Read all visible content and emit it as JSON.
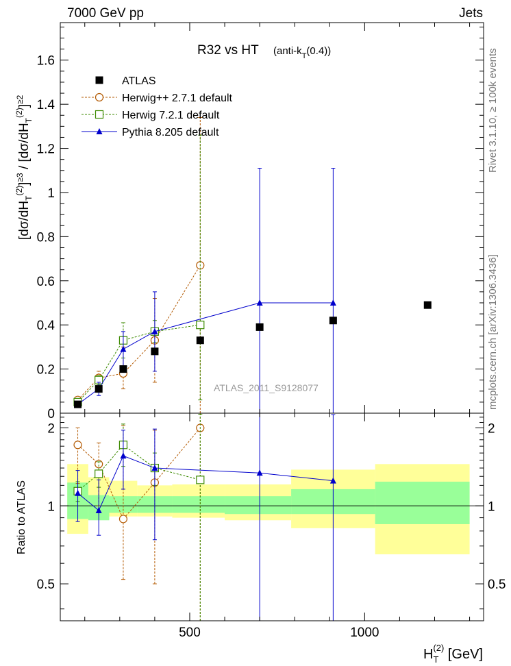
{
  "header": {
    "left": "7000 GeV pp",
    "right": "Jets"
  },
  "side_texts": {
    "rivet": "Rivet 3.1.10, ≥ 100k events",
    "mcplots": "mcplots.cern.ch [arXiv:1306.3436]"
  },
  "chart_data": [
    {
      "type": "scatter",
      "panel": "main",
      "title": "R32 vs HT",
      "title_suffix": "(anti-k",
      "title_sub": "T",
      "title_end": "(0.4))",
      "watermark": "ATLAS_2011_S9128077",
      "ylabel": "[dσ/dH_T^(2)]^≥3 / [dσ/dH_T^(2)]^≥2",
      "xlim": [
        130,
        1340
      ],
      "ylim": [
        0,
        1.77
      ],
      "yticks": [
        0,
        0.2,
        0.4,
        0.6,
        0.8,
        1,
        1.2,
        1.4,
        1.6
      ],
      "ytick_labels": [
        "0",
        "0.2",
        "0.4",
        "0.6",
        "0.8",
        "1",
        "1.2",
        "1.4",
        "1.6"
      ],
      "legend_position": "top-left",
      "series": [
        {
          "name": "ATLAS",
          "color": "#000000",
          "marker": "square-filled",
          "x": [
            180,
            240,
            310,
            400,
            530,
            700,
            910,
            1180
          ],
          "y": [
            0.04,
            0.11,
            0.2,
            0.28,
            0.33,
            0.39,
            0.42,
            0.49
          ]
        },
        {
          "name": "Herwig++ 2.7.1 default",
          "color": "#b35900",
          "marker": "circle-open",
          "line": "dashed",
          "x": [
            180,
            240,
            310,
            400,
            530
          ],
          "y": [
            0.06,
            0.16,
            0.18,
            0.33,
            0.67
          ],
          "err_low": [
            0.01,
            0.02,
            0.07,
            0.19,
            0.67
          ],
          "err_high": [
            0.01,
            0.03,
            0.12,
            0.19,
            0.67
          ]
        },
        {
          "name": "Herwig 7.2.1 default",
          "color": "#3c8a00",
          "marker": "square-open",
          "line": "dashed",
          "x": [
            180,
            240,
            310,
            400,
            530
          ],
          "y": [
            0.05,
            0.15,
            0.33,
            0.37,
            0.4
          ],
          "err_low": [
            0.01,
            0.02,
            0.08,
            0.05,
            0.34
          ],
          "err_high": [
            0.01,
            0.02,
            0.08,
            0.05,
            0.86
          ]
        },
        {
          "name": "Pythia 8.205 default",
          "color": "#0000cc",
          "marker": "triangle-filled",
          "line": "solid",
          "x": [
            180,
            240,
            310,
            400,
            700,
            910
          ],
          "y": [
            0.04,
            0.11,
            0.29,
            0.37,
            0.5,
            0.5
          ],
          "err_low": [
            0.01,
            0.03,
            0.08,
            0.18,
            0.5,
            0.5
          ],
          "err_high": [
            0.01,
            0.03,
            0.08,
            0.18,
            0.61,
            0.61
          ]
        }
      ]
    },
    {
      "type": "scatter",
      "panel": "ratio",
      "ylabel": "Ratio to ATLAS",
      "xlabel": "H_T^(2) [GeV]",
      "ylim": [
        0.36,
        2.28
      ],
      "yticks": [
        0.5,
        1,
        2
      ],
      "ytick_labels": [
        "0.5",
        "1",
        "2"
      ],
      "xticks": [
        500,
        1000
      ],
      "xtick_labels": [
        "500",
        "1000"
      ],
      "bands": {
        "edges": [
          150,
          210,
          270,
          350,
          450,
          600,
          790,
          1030,
          1300
        ],
        "inner_low": [
          0.89,
          0.88,
          0.94,
          0.94,
          0.94,
          0.93,
          0.93,
          0.85
        ],
        "inner_high": [
          1.23,
          1.1,
          1.09,
          1.09,
          1.09,
          1.09,
          1.16,
          1.24
        ],
        "outer_low": [
          0.78,
          0.9,
          0.91,
          0.91,
          0.9,
          0.88,
          0.82,
          0.65
        ],
        "outer_high": [
          1.45,
          1.29,
          1.25,
          1.2,
          1.21,
          1.21,
          1.38,
          1.45
        ]
      },
      "series": [
        {
          "name": "Herwig++ 2.7.1 default",
          "color": "#b35900",
          "marker": "circle-open",
          "line": "dashed",
          "x": [
            180,
            240,
            310,
            400,
            530
          ],
          "y": [
            1.72,
            1.45,
            0.89,
            1.23,
            2.0
          ],
          "err_low": [
            0.5,
            0.45,
            0.37,
            0.73,
            1.65
          ],
          "err_high": [
            0.28,
            0.3,
            1.15,
            0.73,
            0.3
          ]
        },
        {
          "name": "Herwig 7.2.1 default",
          "color": "#3c8a00",
          "marker": "square-open",
          "line": "dashed",
          "x": [
            180,
            240,
            310,
            400,
            530
          ],
          "y": [
            1.14,
            1.33,
            1.72,
            1.4,
            1.26
          ],
          "err_low": [
            0.1,
            0.15,
            0.3,
            0.2,
            1.0
          ],
          "err_high": [
            0.1,
            0.15,
            0.35,
            0.2,
            1.0
          ]
        },
        {
          "name": "Pythia 8.205 default",
          "color": "#0000cc",
          "marker": "triangle-filled",
          "line": "solid",
          "x": [
            180,
            240,
            310,
            400,
            700,
            910
          ],
          "y": [
            1.12,
            0.96,
            1.56,
            1.4,
            1.34,
            1.25
          ],
          "err_low": [
            0.25,
            0.19,
            0.4,
            0.66,
            1.0,
            0.9
          ],
          "err_high": [
            0.25,
            0.3,
            0.4,
            0.58,
            1.0,
            1.0
          ]
        }
      ]
    }
  ]
}
